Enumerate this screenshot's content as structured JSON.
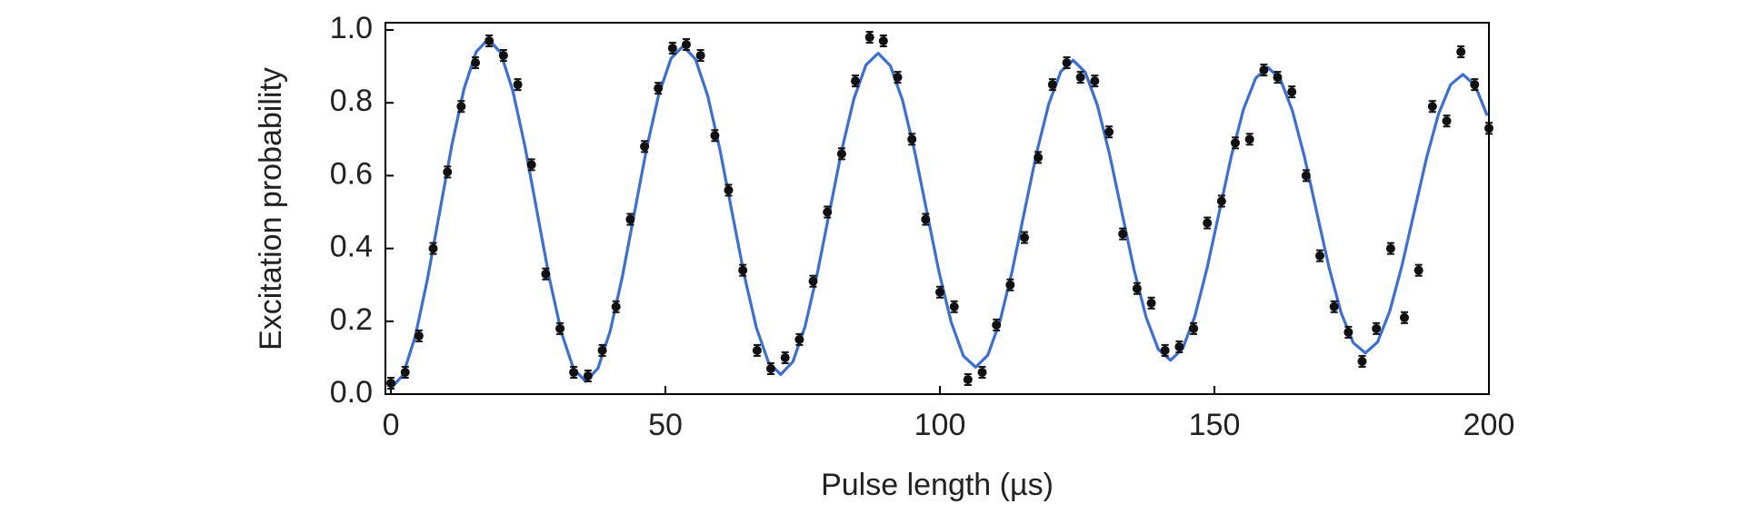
{
  "chart_data": {
    "type": "scatter",
    "xlabel": "Pulse length  (µs)",
    "ylabel": "Excitation  probability",
    "xlim": [
      -1,
      200
    ],
    "ylim": [
      0,
      1.02
    ],
    "xticks": [
      0,
      50,
      100,
      150,
      200
    ],
    "yticks": [
      {
        "value": 0,
        "label": "0.0"
      },
      0.2,
      0.4,
      0.6,
      0.8,
      {
        "value": 1,
        "label": "1.0"
      }
    ],
    "series": [
      {
        "type": "scatter",
        "color": "#111111",
        "x": [
          0,
          2.6,
          5.1,
          7.7,
          10.3,
          12.8,
          15.4,
          17.9,
          20.5,
          23.1,
          25.6,
          28.2,
          30.8,
          33.3,
          35.9,
          38.5,
          41,
          43.6,
          46.2,
          48.7,
          51.3,
          53.8,
          56.4,
          59,
          61.5,
          64.1,
          66.7,
          69.2,
          71.8,
          74.4,
          76.9,
          79.5,
          82.1,
          84.6,
          87.2,
          89.7,
          92.3,
          94.9,
          97.4,
          100,
          102.6,
          105.1,
          107.7,
          110.3,
          112.8,
          115.4,
          117.9,
          120.5,
          123.1,
          125.6,
          128.2,
          130.8,
          133.3,
          135.9,
          138.5,
          141,
          143.6,
          146.2,
          148.7,
          151.3,
          153.8,
          156.4,
          159,
          161.5,
          164.1,
          166.7,
          169.2,
          171.8,
          174.4,
          176.9,
          179.5,
          182.1,
          184.6,
          187.2,
          189.7,
          192.3,
          194.9,
          197.4,
          200
        ],
        "values": [
          0.03,
          0.06,
          0.16,
          0.4,
          0.61,
          0.79,
          0.91,
          0.97,
          0.93,
          0.85,
          0.63,
          0.33,
          0.18,
          0.06,
          0.05,
          0.12,
          0.24,
          0.48,
          0.68,
          0.84,
          0.95,
          0.96,
          0.93,
          0.71,
          0.56,
          0.34,
          0.12,
          0.07,
          0.1,
          0.15,
          0.31,
          0.5,
          0.66,
          0.86,
          0.98,
          0.97,
          0.87,
          0.7,
          0.48,
          0.28,
          0.24,
          0.04,
          0.06,
          0.19,
          0.3,
          0.43,
          0.65,
          0.85,
          0.91,
          0.87,
          0.86,
          0.72,
          0.44,
          0.29,
          0.25,
          0.12,
          0.13,
          0.18,
          0.47,
          0.53,
          0.69,
          0.7,
          0.89,
          0.87,
          0.83,
          0.6,
          0.38,
          0.24,
          0.17,
          0.09,
          0.18,
          0.4,
          0.21,
          0.34,
          0.79,
          0.75,
          0.94,
          0.85,
          0.73
        ],
        "errors": [
          0.015,
          0.015,
          0.015,
          0.015,
          0.015,
          0.015,
          0.015,
          0.015,
          0.015,
          0.015,
          0.015,
          0.015,
          0.015,
          0.015,
          0.015,
          0.015,
          0.015,
          0.015,
          0.015,
          0.015,
          0.015,
          0.015,
          0.015,
          0.015,
          0.015,
          0.015,
          0.015,
          0.015,
          0.015,
          0.015,
          0.015,
          0.015,
          0.015,
          0.015,
          0.015,
          0.015,
          0.015,
          0.015,
          0.015,
          0.015,
          0.015,
          0.015,
          0.015,
          0.015,
          0.015,
          0.015,
          0.015,
          0.015,
          0.015,
          0.015,
          0.015,
          0.015,
          0.015,
          0.015,
          0.015,
          0.015,
          0.015,
          0.015,
          0.015,
          0.015,
          0.015,
          0.015,
          0.015,
          0.015,
          0.015,
          0.015,
          0.015,
          0.015,
          0.015,
          0.015,
          0.015,
          0.015,
          0.015,
          0.015,
          0.015,
          0.015,
          0.015,
          0.015,
          0.015
        ]
      },
      {
        "type": "line",
        "color": "#3b6fd8",
        "x": [
          0,
          2.22,
          4.44,
          6.66,
          8.88,
          11.09,
          13.31,
          15.53,
          17.75,
          19.97,
          22.19,
          24.41,
          26.63,
          28.84,
          31.06,
          33.28,
          35.5,
          37.72,
          39.94,
          42.16,
          44.38,
          46.59,
          48.81,
          51.03,
          53.25,
          55.47,
          57.69,
          59.91,
          62.13,
          64.34,
          66.56,
          68.78,
          71,
          73.22,
          75.44,
          77.66,
          79.88,
          82.09,
          84.31,
          86.53,
          88.75,
          90.97,
          93.19,
          95.41,
          97.63,
          99.84,
          102.06,
          104.28,
          106.5,
          108.72,
          110.94,
          113.16,
          115.38,
          117.59,
          119.81,
          122.03,
          124.25,
          126.47,
          128.69,
          130.91,
          133.13,
          135.34,
          137.56,
          139.78,
          142,
          144.22,
          146.44,
          148.66,
          150.88,
          153.09,
          155.31,
          157.53,
          159.75,
          161.97,
          164.19,
          166.41,
          168.63,
          170.84,
          173.06,
          175.28,
          177.5,
          179.72,
          181.94,
          184.16,
          186.38,
          188.59,
          190.81,
          193.03,
          195.25,
          197.47,
          199.69
        ],
        "values": [
          0.015,
          0.053,
          0.159,
          0.316,
          0.5,
          0.683,
          0.838,
          0.94,
          0.975,
          0.938,
          0.834,
          0.681,
          0.5,
          0.32,
          0.169,
          0.069,
          0.035,
          0.071,
          0.173,
          0.323,
          0.5,
          0.676,
          0.824,
          0.922,
          0.956,
          0.92,
          0.82,
          0.673,
          0.5,
          0.328,
          0.183,
          0.087,
          0.054,
          0.089,
          0.186,
          0.331,
          0.5,
          0.668,
          0.81,
          0.904,
          0.936,
          0.902,
          0.807,
          0.666,
          0.5,
          0.335,
          0.197,
          0.105,
          0.074,
          0.107,
          0.2,
          0.338,
          0.5,
          0.661,
          0.796,
          0.886,
          0.917,
          0.884,
          0.793,
          0.658,
          0.5,
          0.343,
          0.211,
          0.123,
          0.093,
          0.125,
          0.214,
          0.346,
          0.5,
          0.654,
          0.783,
          0.868,
          0.897,
          0.866,
          0.779,
          0.651,
          0.5,
          0.35,
          0.224,
          0.141,
          0.113,
          0.143,
          0.228,
          0.353,
          0.5,
          0.646,
          0.769,
          0.85,
          0.878,
          0.848,
          0.765
        ]
      }
    ]
  }
}
